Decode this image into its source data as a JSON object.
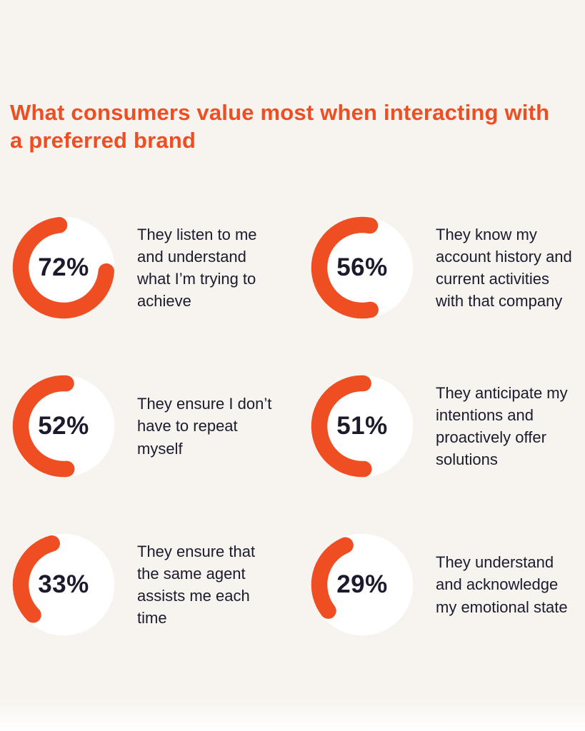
{
  "title": "What consumers value most when interacting with a preferred brand",
  "colors": {
    "accent": "#ef4e23",
    "background": "#f7f3ee",
    "text": "#1c1b2e",
    "donut_face": "#ffffff"
  },
  "chart_data": {
    "type": "pie",
    "subtype": "donut-grid",
    "title": "What consumers value most when interacting with a preferred brand",
    "unit": "%",
    "legend_position": "none",
    "items": [
      {
        "value": 72,
        "percent_label": "72%",
        "label": "They listen to me and understand what I’m trying to achieve"
      },
      {
        "value": 56,
        "percent_label": "56%",
        "label": "They know my account history and current activities with that company"
      },
      {
        "value": 52,
        "percent_label": "52%",
        "label": "They ensure I don’t have to repeat myself"
      },
      {
        "value": 51,
        "percent_label": "51%",
        "label": "They anticipate my intentions and proactively offer solutions"
      },
      {
        "value": 33,
        "percent_label": "33%",
        "label": "They ensure that the same agent assists me each time"
      },
      {
        "value": 29,
        "percent_label": "29%",
        "label": "They understand and acknowledge my emotional state"
      }
    ]
  }
}
